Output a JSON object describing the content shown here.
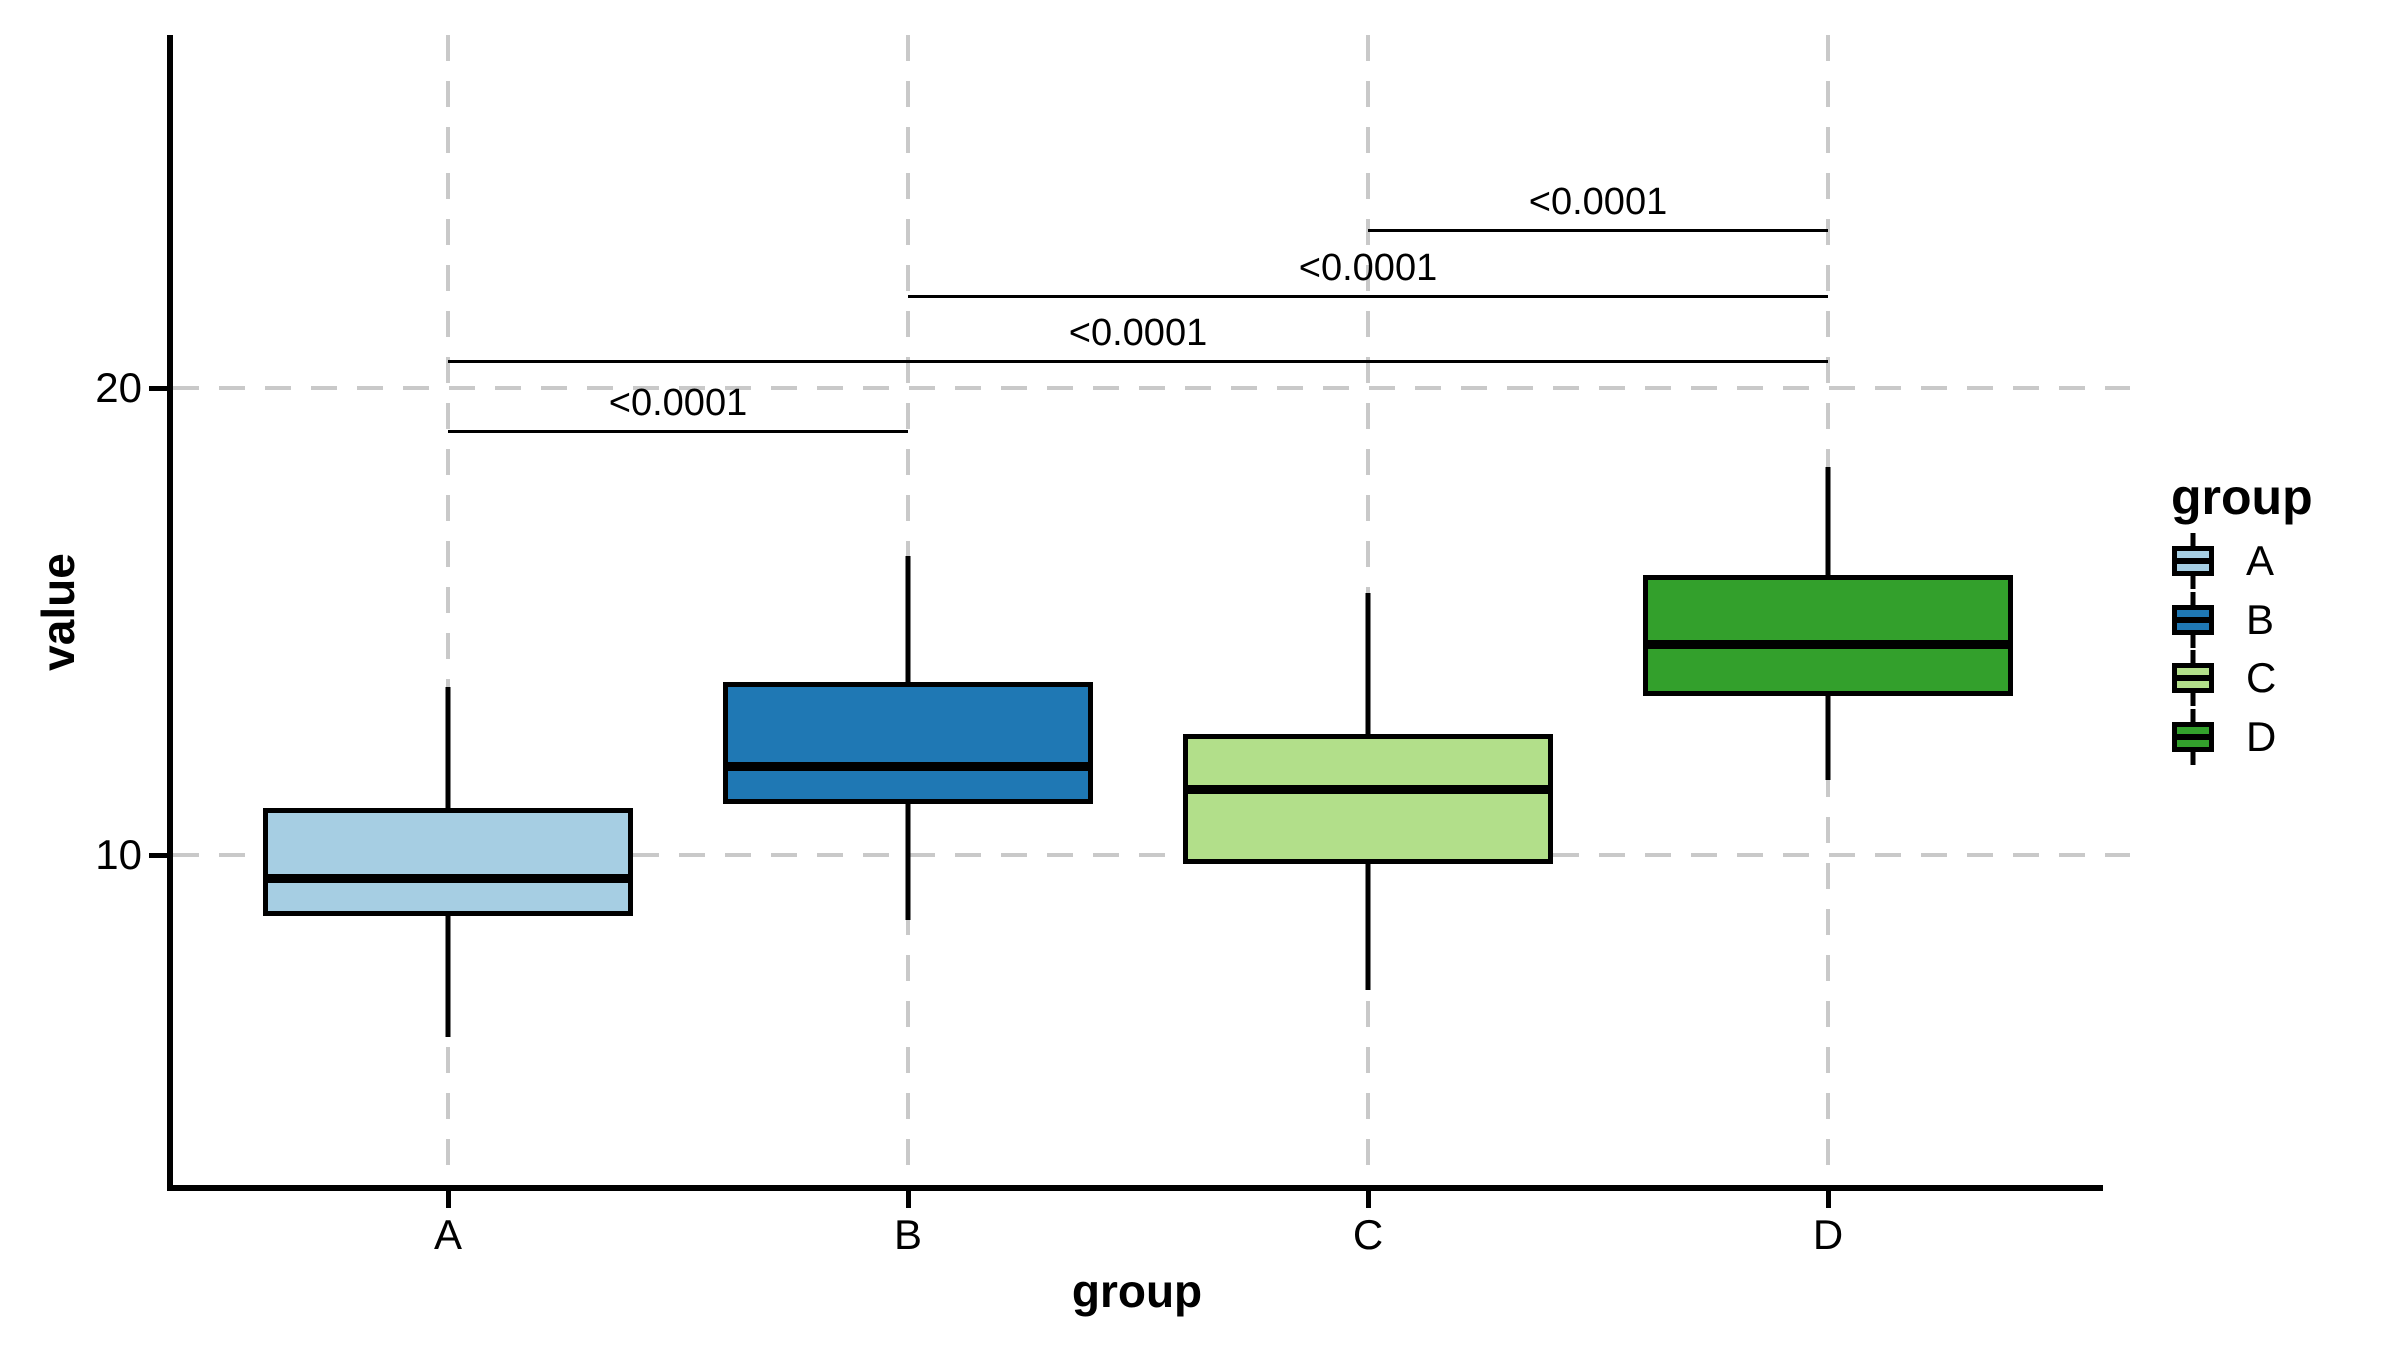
{
  "figure": {
    "background": "#ffffff",
    "text_color": "#000000",
    "gridline_color": "#c9c9c9"
  },
  "chart_data": {
    "type": "boxplot",
    "title": "",
    "xlabel": "group",
    "ylabel": "value",
    "categories": [
      "A",
      "B",
      "C",
      "D"
    ],
    "y_ticks": [
      10,
      20
    ],
    "y_range": [
      2.9,
      27.5
    ],
    "grid": "dashed",
    "legend_position": "right",
    "series": [
      {
        "name": "A",
        "color": "#A6CEE3",
        "whisker_low": 6.1,
        "q1": 8.7,
        "median": 9.5,
        "q3": 11.0,
        "whisker_high": 13.6
      },
      {
        "name": "B",
        "color": "#1F78B4",
        "whisker_low": 8.6,
        "q1": 11.1,
        "median": 11.9,
        "q3": 13.7,
        "whisker_high": 16.4
      },
      {
        "name": "C",
        "color": "#B2DF8A",
        "whisker_low": 7.1,
        "q1": 9.8,
        "median": 11.4,
        "q3": 12.6,
        "whisker_high": 15.6
      },
      {
        "name": "D",
        "color": "#33A02C",
        "whisker_low": 11.6,
        "q1": 13.4,
        "median": 14.5,
        "q3": 16.0,
        "whisker_high": 18.3
      }
    ],
    "significance": [
      {
        "group1": "A",
        "group2": "B",
        "label": "<0.0001",
        "height": 19.1
      },
      {
        "group1": "A",
        "group2": "D",
        "label": "<0.0001",
        "height": 20.6
      },
      {
        "group1": "B",
        "group2": "D",
        "label": "<0.0001",
        "height": 22.0
      },
      {
        "group1": "C",
        "group2": "D",
        "label": "<0.0001",
        "height": 23.4
      }
    ],
    "legend": {
      "title": "group",
      "entries": [
        {
          "label": "A",
          "color": "#A6CEE3"
        },
        {
          "label": "B",
          "color": "#1F78B4"
        },
        {
          "label": "C",
          "color": "#B2DF8A"
        },
        {
          "label": "D",
          "color": "#33A02C"
        }
      ]
    }
  }
}
